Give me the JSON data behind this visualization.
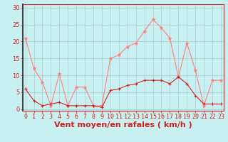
{
  "x": [
    0,
    1,
    2,
    3,
    4,
    5,
    6,
    7,
    8,
    9,
    10,
    11,
    12,
    13,
    14,
    15,
    16,
    17,
    18,
    19,
    20,
    21,
    22,
    23
  ],
  "rafales": [
    21,
    12,
    8,
    1,
    10.5,
    1,
    6.5,
    6.5,
    1,
    1,
    15,
    16,
    18.5,
    19.5,
    23,
    26.5,
    24,
    21,
    9.5,
    19.5,
    11.5,
    1,
    8.5,
    8.5
  ],
  "moyen": [
    6,
    2.5,
    1,
    1.5,
    2,
    1,
    1,
    1,
    1,
    0.5,
    5.5,
    6,
    7,
    7.5,
    8.5,
    8.5,
    8.5,
    7.5,
    9.5,
    7.5,
    4,
    1.5,
    1.5,
    1.5
  ],
  "bg_color": "#c8f0f0",
  "line_color_rafales": "#ff8080",
  "line_color_moyen": "#cc2222",
  "grid_color": "#aacccc",
  "xlabel": "Vent moyen/en rafales ( km/h )",
  "xlabel_color": "#cc2222",
  "ylabel_color": "#cc2222",
  "yticks": [
    0,
    5,
    10,
    15,
    20,
    25,
    30
  ],
  "ylim": [
    -0.5,
    31
  ],
  "xlim": [
    -0.3,
    23.3
  ],
  "tick_fontsize": 6,
  "xlabel_fontsize": 8
}
